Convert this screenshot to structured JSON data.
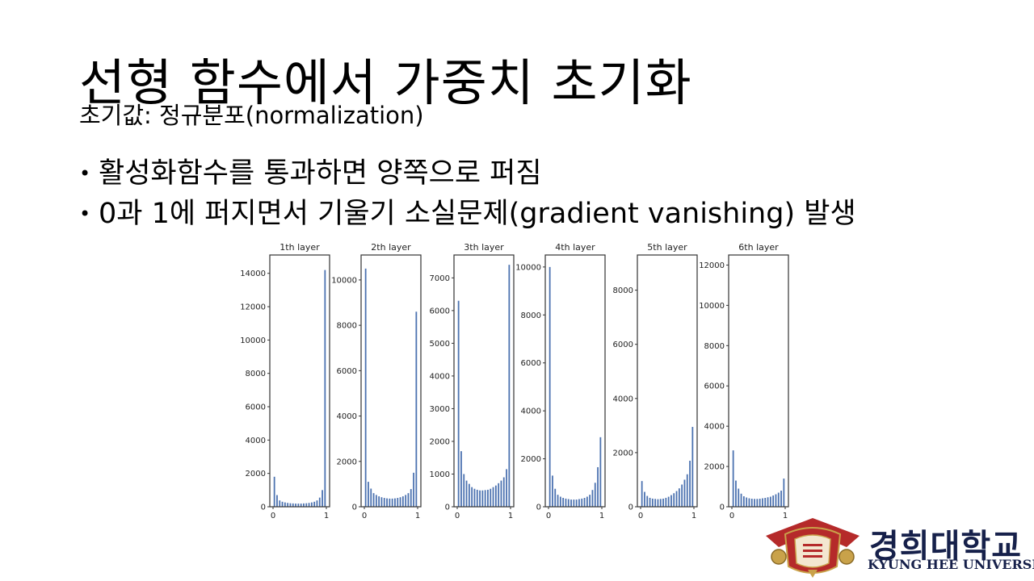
{
  "slide": {
    "title": "선형 함수에서 가중치 초기화",
    "subtitle": "초기값: 정규분포(normalization)",
    "bullets": [
      "활성화함수를 통과하면 양쪽으로 퍼짐",
      "0과 1에 퍼지면서 기울기 소실문제(gradient vanishing) 발생"
    ]
  },
  "logo": {
    "korean": "경희대학교",
    "english": "KYUNG HEE UNIVERSITY",
    "colors": {
      "crest": "#b52a2a",
      "gold": "#c9a24a",
      "text": "#16204a"
    }
  },
  "chart_data": [
    {
      "type": "bar",
      "title": "1th layer",
      "xticks": [
        "0",
        "1"
      ],
      "yticks": [
        "0",
        "2000",
        "4000",
        "6000",
        "8000",
        "10000",
        "12000",
        "14000"
      ],
      "ylim": [
        0,
        15100
      ],
      "bins": 20,
      "values": [
        1800,
        700,
        380,
        300,
        260,
        230,
        210,
        200,
        190,
        190,
        190,
        200,
        210,
        230,
        260,
        300,
        380,
        550,
        1000,
        14200
      ]
    },
    {
      "type": "bar",
      "title": "2th layer",
      "xticks": [
        "0",
        "1"
      ],
      "yticks": [
        "0",
        "2000",
        "4000",
        "6000",
        "8000",
        "10000"
      ],
      "ylim": [
        0,
        11100
      ],
      "bins": 20,
      "values": [
        10500,
        1100,
        800,
        600,
        520,
        460,
        420,
        390,
        370,
        360,
        360,
        370,
        390,
        420,
        460,
        520,
        600,
        780,
        1500,
        8600
      ]
    },
    {
      "type": "bar",
      "title": "3th layer",
      "xticks": [
        "0",
        "1"
      ],
      "yticks": [
        "0",
        "1000",
        "2000",
        "3000",
        "4000",
        "5000",
        "6000",
        "7000"
      ],
      "ylim": [
        0,
        7700
      ],
      "bins": 20,
      "values": [
        6300,
        1700,
        1000,
        800,
        700,
        600,
        550,
        520,
        500,
        500,
        510,
        520,
        550,
        600,
        650,
        720,
        800,
        900,
        1150,
        7400
      ]
    },
    {
      "type": "bar",
      "title": "4th layer",
      "xticks": [
        "0",
        "1"
      ],
      "yticks": [
        "0",
        "2000",
        "4000",
        "6000",
        "8000",
        "10000"
      ],
      "ylim": [
        0,
        10500
      ],
      "bins": 20,
      "values": [
        10000,
        1300,
        750,
        500,
        420,
        370,
        340,
        320,
        300,
        300,
        300,
        320,
        340,
        370,
        420,
        500,
        700,
        1000,
        1650,
        2900
      ]
    },
    {
      "type": "bar",
      "title": "5th layer",
      "xticks": [
        "0",
        "1"
      ],
      "yticks": [
        "0",
        "2000",
        "4000",
        "6000",
        "8000"
      ],
      "ylim": [
        0,
        9300
      ],
      "bins": 20,
      "values": [
        950,
        550,
        400,
        330,
        300,
        290,
        280,
        290,
        300,
        330,
        370,
        430,
        500,
        580,
        680,
        820,
        1000,
        1200,
        1700,
        2950
      ]
    },
    {
      "type": "bar",
      "title": "6th layer",
      "xticks": [
        "0",
        "1"
      ],
      "yticks": [
        "0",
        "2000",
        "4000",
        "6000",
        "8000",
        "10000",
        "12000"
      ],
      "ylim": [
        0,
        12500
      ],
      "bins": 20,
      "values": [
        2800,
        1300,
        900,
        650,
        520,
        460,
        420,
        400,
        390,
        390,
        400,
        420,
        440,
        470,
        500,
        560,
        620,
        700,
        800,
        1400
      ]
    }
  ]
}
